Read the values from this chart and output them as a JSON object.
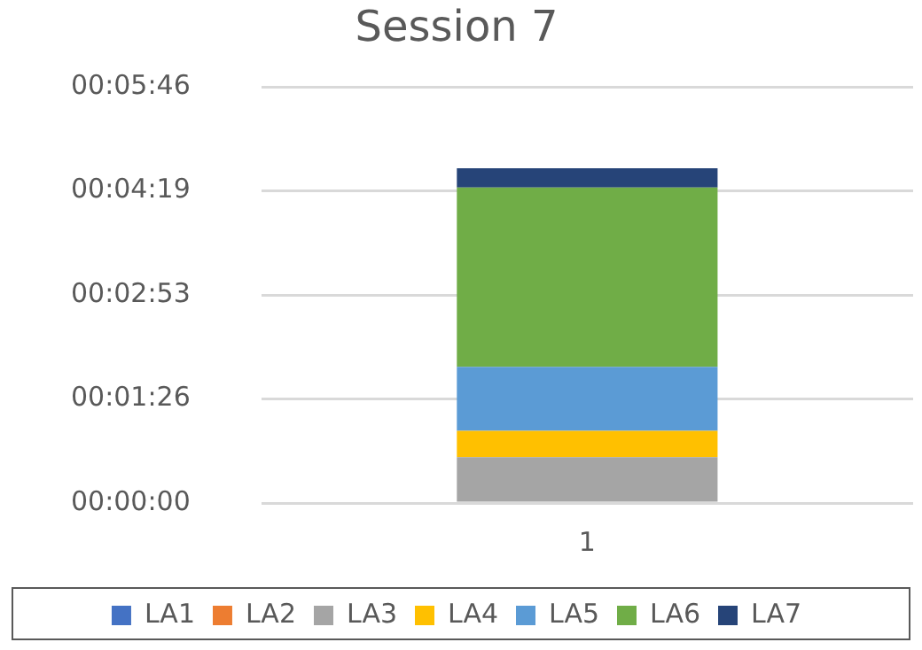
{
  "chart_data": {
    "type": "bar",
    "title": "Session 7",
    "categories": [
      "1"
    ],
    "stacked": true,
    "series": [
      {
        "name": "LA1",
        "color": "#4472c4",
        "values": [
          0
        ]
      },
      {
        "name": "LA2",
        "color": "#ed7d31",
        "values": [
          0
        ]
      },
      {
        "name": "LA3",
        "color": "#a5a5a5",
        "values": [
          38
        ]
      },
      {
        "name": "LA4",
        "color": "#ffc000",
        "values": [
          22
        ]
      },
      {
        "name": "LA5",
        "color": "#5b9bd5",
        "values": [
          53
        ]
      },
      {
        "name": "LA6",
        "color": "#70ad47",
        "values": [
          149
        ]
      },
      {
        "name": "LA7",
        "color": "#264478",
        "values": [
          16
        ]
      }
    ],
    "ylim": [
      0,
      345.6
    ],
    "yticks": [
      {
        "value": 0,
        "label": "00:00:00"
      },
      {
        "value": 86.4,
        "label": "00:01:26"
      },
      {
        "value": 172.8,
        "label": "00:02:53"
      },
      {
        "value": 259.2,
        "label": "00:04:19"
      },
      {
        "value": 345.6,
        "label": "00:05:46"
      }
    ],
    "grid": "y",
    "legend": "bottom"
  }
}
